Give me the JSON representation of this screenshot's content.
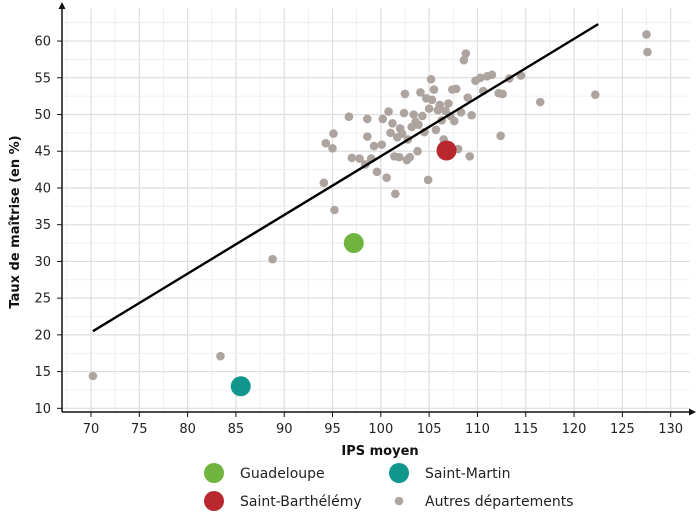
{
  "chart_data": {
    "type": "scatter",
    "xlabel": "IPS moyen",
    "ylabel": "Taux de maîtrise (en %)",
    "xlim": [
      67,
      132
    ],
    "ylim": [
      9.5,
      64.5
    ],
    "xticks": [
      70,
      75,
      80,
      85,
      90,
      95,
      100,
      105,
      110,
      115,
      120,
      125,
      130
    ],
    "yticks": [
      10,
      15,
      20,
      25,
      30,
      35,
      40,
      45,
      50,
      55,
      60
    ],
    "grid": true,
    "legend_position": "bottom",
    "regression_line": {
      "x": [
        70.2,
        122.5
      ],
      "y": [
        20.5,
        62.3
      ],
      "color": "#000000"
    },
    "series": [
      {
        "name": "Guadeloupe",
        "color": "#6eb43f",
        "marker": "large",
        "points": [
          [
            97.2,
            32.5
          ]
        ]
      },
      {
        "name": "Saint-Martin",
        "color": "#10968d",
        "marker": "large",
        "points": [
          [
            85.5,
            13.0
          ]
        ]
      },
      {
        "name": "Saint-Barthélémy",
        "color": "#b8282e",
        "marker": "large",
        "points": [
          [
            106.8,
            45.1
          ]
        ]
      },
      {
        "name": "Autres départements",
        "color": "#aea49f",
        "marker": "small",
        "points": [
          [
            70.2,
            14.4
          ],
          [
            83.4,
            17.1
          ],
          [
            88.8,
            30.3
          ],
          [
            95.2,
            37.0
          ],
          [
            94.1,
            40.7
          ],
          [
            94.3,
            46.1
          ],
          [
            95.0,
            45.4
          ],
          [
            95.1,
            47.4
          ],
          [
            96.7,
            49.7
          ],
          [
            97.0,
            44.1
          ],
          [
            97.8,
            44.0
          ],
          [
            98.4,
            43.2
          ],
          [
            98.6,
            47.0
          ],
          [
            98.6,
            49.4
          ],
          [
            99.0,
            44.0
          ],
          [
            99.3,
            45.7
          ],
          [
            99.6,
            42.2
          ],
          [
            100.1,
            45.9
          ],
          [
            100.2,
            49.4
          ],
          [
            100.6,
            41.4
          ],
          [
            100.8,
            50.4
          ],
          [
            101.0,
            47.5
          ],
          [
            101.2,
            48.8
          ],
          [
            101.4,
            44.3
          ],
          [
            101.5,
            39.2
          ],
          [
            101.7,
            46.9
          ],
          [
            101.9,
            44.2
          ],
          [
            102.0,
            48.1
          ],
          [
            102.2,
            47.4
          ],
          [
            102.4,
            50.2
          ],
          [
            102.5,
            52.8
          ],
          [
            102.7,
            43.8
          ],
          [
            102.8,
            46.6
          ],
          [
            103.0,
            44.2
          ],
          [
            103.2,
            48.3
          ],
          [
            103.4,
            50.0
          ],
          [
            103.6,
            49.0
          ],
          [
            103.8,
            45.0
          ],
          [
            103.9,
            48.6
          ],
          [
            104.1,
            53.0
          ],
          [
            104.3,
            49.8
          ],
          [
            104.5,
            47.6
          ],
          [
            104.7,
            52.2
          ],
          [
            104.9,
            41.1
          ],
          [
            105.0,
            50.8
          ],
          [
            105.2,
            54.8
          ],
          [
            105.3,
            52.0
          ],
          [
            105.5,
            53.4
          ],
          [
            105.7,
            47.9
          ],
          [
            105.9,
            50.6
          ],
          [
            106.1,
            51.3
          ],
          [
            106.3,
            49.2
          ],
          [
            106.5,
            46.6
          ],
          [
            106.7,
            50.5
          ],
          [
            107.0,
            51.5
          ],
          [
            107.2,
            49.8
          ],
          [
            107.4,
            53.4
          ],
          [
            107.6,
            49.1
          ],
          [
            107.8,
            53.5
          ],
          [
            108.0,
            45.3
          ],
          [
            108.3,
            50.3
          ],
          [
            108.6,
            57.4
          ],
          [
            108.8,
            58.3
          ],
          [
            109.0,
            52.3
          ],
          [
            109.2,
            44.3
          ],
          [
            109.4,
            49.9
          ],
          [
            109.8,
            54.6
          ],
          [
            110.3,
            55.0
          ],
          [
            110.6,
            53.2
          ],
          [
            111.0,
            55.2
          ],
          [
            111.5,
            55.4
          ],
          [
            112.2,
            52.9
          ],
          [
            112.4,
            47.1
          ],
          [
            112.6,
            52.8
          ],
          [
            113.3,
            54.9
          ],
          [
            114.5,
            55.3
          ],
          [
            116.5,
            51.7
          ],
          [
            122.2,
            52.7
          ],
          [
            127.5,
            60.9
          ],
          [
            127.6,
            58.5
          ]
        ]
      }
    ]
  }
}
